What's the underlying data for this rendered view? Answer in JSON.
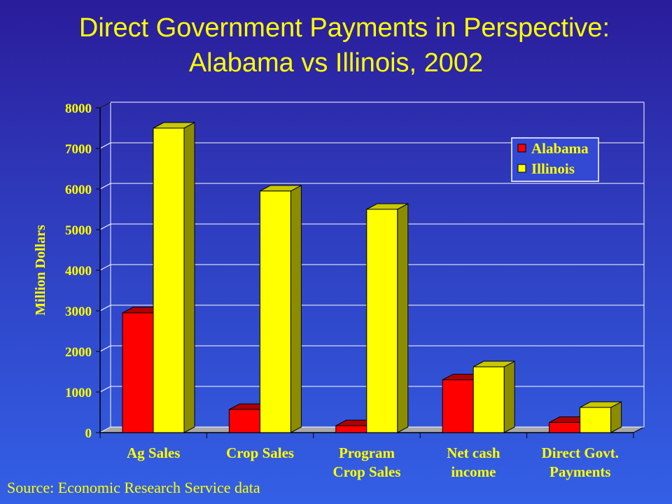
{
  "title_line1": "Direct Government Payments in Perspective:",
  "title_line2": "Alabama vs Illinois, 2002",
  "source": "Source: Economic Research Service data",
  "colors": {
    "text": "#ffff00",
    "alabama": "#ff0000",
    "illinois": "#ffff00",
    "floor": "#a8a8a8",
    "grid": "#ffffff"
  },
  "chart_data": {
    "type": "bar",
    "ylabel": "Million Dollars",
    "ylim": [
      0,
      8000
    ],
    "yticks": [
      "0",
      "1000",
      "2000",
      "3000",
      "4000",
      "5000",
      "6000",
      "7000",
      "8000"
    ],
    "categories": [
      [
        "Ag Sales"
      ],
      [
        "Crop Sales"
      ],
      [
        "Program",
        "Crop Sales"
      ],
      [
        "Net cash",
        "income"
      ],
      [
        "Direct Govt.",
        "Payments"
      ]
    ],
    "series": [
      {
        "name": "Alabama",
        "values": [
          2950,
          570,
          170,
          1300,
          250
        ]
      },
      {
        "name": "Illinois",
        "values": [
          7500,
          5950,
          5500,
          1620,
          620
        ]
      }
    ],
    "legend": {
      "position": "top-right"
    },
    "grid": true,
    "style": "3d-bar"
  }
}
